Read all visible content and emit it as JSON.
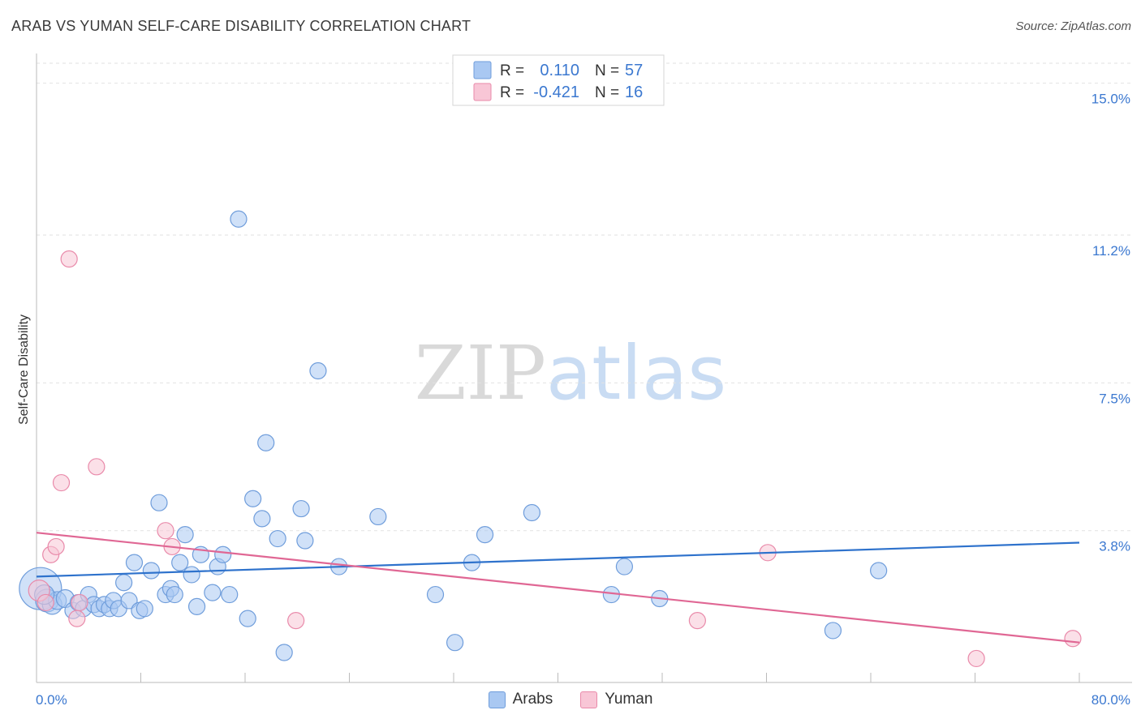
{
  "title": "ARAB VS YUMAN SELF-CARE DISABILITY CORRELATION CHART",
  "source": "Source: ZipAtlas.com",
  "watermark": {
    "zip": "ZIP",
    "atlas": "atlas"
  },
  "chart_data": {
    "type": "scatter",
    "title": "ARAB VS YUMAN SELF-CARE DISABILITY CORRELATION CHART",
    "xlabel": "",
    "ylabel": "Self-Care Disability",
    "xlim": [
      0,
      80
    ],
    "ylim": [
      0,
      15.5
    ],
    "x_tick_labels": {
      "left": "0.0%",
      "right": "80.0%"
    },
    "y_ticks": [
      {
        "value": 3.8,
        "label": "3.8%"
      },
      {
        "value": 7.5,
        "label": "7.5%"
      },
      {
        "value": 11.2,
        "label": "11.2%"
      },
      {
        "value": 15.0,
        "label": "15.0%"
      }
    ],
    "grid": true,
    "stats_legend": [
      {
        "series": "Arabs",
        "r_label": "R =",
        "r_value": " 0.110",
        "n_label": "N =",
        "n_value": "57"
      },
      {
        "series": "Yuman",
        "r_label": "R =",
        "r_value": "-0.421",
        "n_label": "N =",
        "n_value": "16"
      }
    ],
    "series": [
      {
        "name": "Arabs",
        "fill": "#a9c8f2",
        "stroke": "#6f9ddb",
        "trend_color": "#2e72cc",
        "trend": {
          "x": [
            0,
            80
          ],
          "y": [
            2.65,
            3.5
          ]
        },
        "points": [
          [
            0.3,
            2.35,
            26
          ],
          [
            0.8,
            2.05,
            14
          ],
          [
            1.2,
            1.95,
            12
          ],
          [
            1.6,
            2.05,
            11
          ],
          [
            2.2,
            2.1,
            11
          ],
          [
            2.8,
            1.8,
            10
          ],
          [
            3.2,
            2.0,
            10
          ],
          [
            3.6,
            1.85,
            10
          ],
          [
            4.0,
            2.2,
            10
          ],
          [
            4.4,
            1.95,
            10
          ],
          [
            4.8,
            1.85,
            10
          ],
          [
            5.2,
            1.95,
            10
          ],
          [
            5.6,
            1.85,
            10
          ],
          [
            5.9,
            2.05,
            10
          ],
          [
            6.3,
            1.85,
            10
          ],
          [
            6.7,
            2.5,
            10
          ],
          [
            7.1,
            2.05,
            10
          ],
          [
            7.5,
            3.0,
            10
          ],
          [
            7.9,
            1.8,
            10
          ],
          [
            8.3,
            1.85,
            10
          ],
          [
            8.8,
            2.8,
            10
          ],
          [
            9.4,
            4.5,
            10
          ],
          [
            9.9,
            2.2,
            10
          ],
          [
            10.3,
            2.35,
            10
          ],
          [
            10.6,
            2.2,
            10
          ],
          [
            11.0,
            3.0,
            10
          ],
          [
            11.4,
            3.7,
            10
          ],
          [
            11.9,
            2.7,
            10
          ],
          [
            12.3,
            1.9,
            10
          ],
          [
            12.6,
            3.2,
            10
          ],
          [
            13.5,
            2.25,
            10
          ],
          [
            13.9,
            2.9,
            10
          ],
          [
            14.3,
            3.2,
            10
          ],
          [
            14.8,
            2.2,
            10
          ],
          [
            15.5,
            11.6,
            10
          ],
          [
            16.2,
            1.6,
            10
          ],
          [
            16.6,
            4.6,
            10
          ],
          [
            17.3,
            4.1,
            10
          ],
          [
            17.6,
            6.0,
            10
          ],
          [
            18.5,
            3.6,
            10
          ],
          [
            19.0,
            0.75,
            10
          ],
          [
            20.3,
            4.35,
            10
          ],
          [
            20.6,
            3.55,
            10
          ],
          [
            21.6,
            7.8,
            10
          ],
          [
            23.2,
            2.9,
            10
          ],
          [
            26.2,
            4.15,
            10
          ],
          [
            30.6,
            2.2,
            10
          ],
          [
            32.1,
            1.0,
            10
          ],
          [
            33.4,
            3.0,
            10
          ],
          [
            34.4,
            3.7,
            10
          ],
          [
            38.0,
            4.25,
            10
          ],
          [
            44.1,
            2.2,
            10
          ],
          [
            45.1,
            2.9,
            10
          ],
          [
            47.8,
            2.1,
            10
          ],
          [
            61.1,
            1.3,
            10
          ],
          [
            64.6,
            2.8,
            10
          ],
          [
            0.6,
            2.2,
            12
          ]
        ]
      },
      {
        "name": "Yuman",
        "fill": "#f8c6d6",
        "stroke": "#e98aaa",
        "trend_color": "#e06794",
        "trend": {
          "x": [
            0,
            80
          ],
          "y": [
            3.75,
            1.0
          ]
        },
        "points": [
          [
            0.2,
            2.3,
            13
          ],
          [
            0.7,
            2.0,
            10
          ],
          [
            1.1,
            3.2,
            10
          ],
          [
            1.5,
            3.4,
            10
          ],
          [
            1.9,
            5.0,
            10
          ],
          [
            2.5,
            10.6,
            10
          ],
          [
            3.1,
            1.6,
            10
          ],
          [
            3.3,
            2.0,
            10
          ],
          [
            4.6,
            5.4,
            10
          ],
          [
            9.9,
            3.8,
            10
          ],
          [
            10.4,
            3.4,
            10
          ],
          [
            19.9,
            1.55,
            10
          ],
          [
            50.7,
            1.55,
            10
          ],
          [
            56.1,
            3.25,
            10
          ],
          [
            72.1,
            0.6,
            10
          ],
          [
            79.5,
            1.1,
            10
          ]
        ]
      }
    ]
  }
}
